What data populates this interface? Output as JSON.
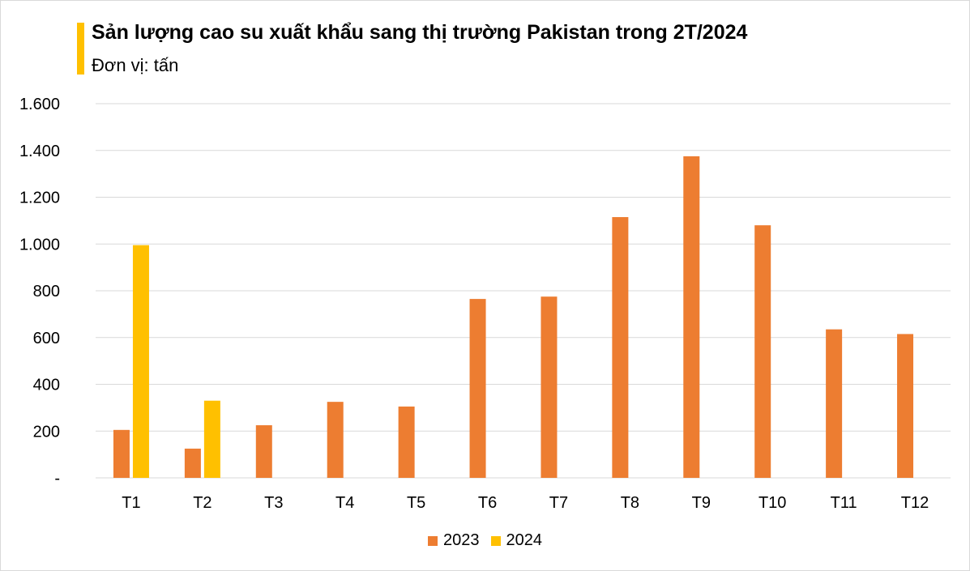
{
  "title": "Sản lượng cao su xuất khẩu sang thị trường Pakistan trong 2T/2024",
  "subtitle": "Đơn vị: tấn",
  "colors": {
    "accent": "#ffc000",
    "series_2023": "#ed7d31",
    "series_2024": "#ffc000",
    "grid": "#d9d9d9"
  },
  "chart_data": {
    "type": "bar",
    "title": "Sản lượng cao su xuất khẩu sang thị trường Pakistan trong 2T/2024",
    "subtitle": "Đơn vị: tấn",
    "categories": [
      "T1",
      "T2",
      "T3",
      "T4",
      "T5",
      "T6",
      "T7",
      "T8",
      "T9",
      "T10",
      "T11",
      "T12"
    ],
    "series": [
      {
        "name": "2023",
        "color": "#ed7d31",
        "values": [
          205,
          125,
          225,
          325,
          305,
          765,
          775,
          1115,
          1375,
          1080,
          635,
          615
        ]
      },
      {
        "name": "2024",
        "color": "#ffc000",
        "values": [
          995,
          330,
          null,
          null,
          null,
          null,
          null,
          null,
          null,
          null,
          null,
          null
        ]
      }
    ],
    "ylim": [
      0,
      1600
    ],
    "yticks": [
      0,
      200,
      400,
      600,
      800,
      1000,
      1200,
      1400,
      1600
    ],
    "ytick_labels": [
      "-",
      "200",
      "400",
      "600",
      "800",
      "1.000",
      "1.200",
      "1.400",
      "1.600"
    ],
    "xlabel": "",
    "ylabel": "",
    "grid": true,
    "legend_position": "bottom"
  }
}
